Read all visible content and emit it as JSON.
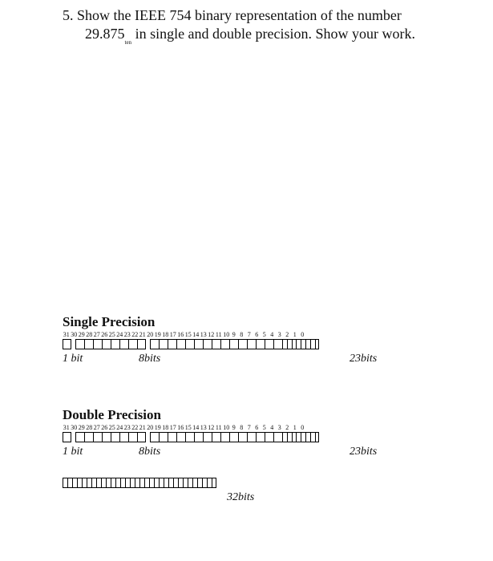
{
  "question": {
    "number": "5.",
    "text_line": "Show the IEEE 754 binary representation of the number 29.875",
    "sub": "ten",
    "text_tail": " in single and double precision. Show your work."
  },
  "bit_positions": [
    "31",
    "30",
    "29",
    "28",
    "27",
    "26",
    "25",
    "24",
    "23",
    "22",
    "21",
    "20",
    "19",
    "18",
    "17",
    "16",
    "15",
    "14",
    "13",
    "12",
    "11",
    "10",
    "9",
    "8",
    "7",
    "6",
    "5",
    "4",
    "3",
    "2",
    "1",
    "0"
  ],
  "single": {
    "title": "Single Precision",
    "sign_count": 1,
    "exp_count": 8,
    "frac_big_count": 15,
    "frac_small_count": 8,
    "labels": {
      "sign": "1 bit",
      "exp": "8bits",
      "frac": "23bits"
    }
  },
  "double": {
    "title": "Double Precision",
    "sign_count": 1,
    "exp_count": 8,
    "frac_big_count": 15,
    "frac_small_count": 8,
    "labels": {
      "sign": "1 bit",
      "exp": "8bits",
      "frac": "23bits"
    }
  },
  "extra": {
    "count": 32,
    "label": "32bits"
  }
}
